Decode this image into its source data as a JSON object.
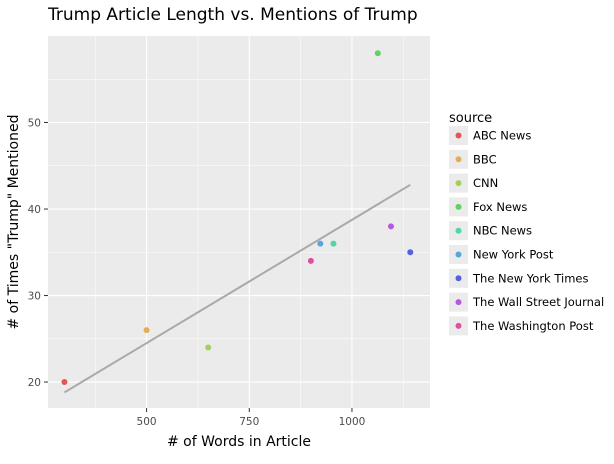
{
  "chart_data": {
    "type": "scatter",
    "title": "Trump Article Length vs. Mentions of Trump",
    "xlabel": "# of Words in Article",
    "ylabel": "# of Times \"Trump\" Mentioned",
    "xlim": [
      260,
      1190
    ],
    "ylim": [
      17,
      60
    ],
    "x_ticks": [
      500,
      750,
      1000
    ],
    "y_ticks": [
      20,
      30,
      40,
      50
    ],
    "grid": true,
    "legend_title": "source",
    "legend_position": "right",
    "series": [
      {
        "name": "ABC News",
        "color": "#e15759",
        "points": [
          {
            "x": 300,
            "y": 20
          }
        ]
      },
      {
        "name": "BBC",
        "color": "#e3ae55",
        "points": [
          {
            "x": 500,
            "y": 26
          }
        ]
      },
      {
        "name": "CNN",
        "color": "#a4d05a",
        "points": [
          {
            "x": 650,
            "y": 24
          }
        ]
      },
      {
        "name": "Fox News",
        "color": "#5ed45e",
        "points": [
          {
            "x": 1063,
            "y": 58
          }
        ]
      },
      {
        "name": "NBC News",
        "color": "#4ed6a6",
        "points": [
          {
            "x": 955,
            "y": 36
          }
        ]
      },
      {
        "name": "New York Post",
        "color": "#54a8dc",
        "points": [
          {
            "x": 923,
            "y": 36
          }
        ]
      },
      {
        "name": "The New York Times",
        "color": "#5561e1",
        "points": [
          {
            "x": 1142,
            "y": 35
          }
        ]
      },
      {
        "name": "The Wall Street Journal",
        "color": "#b659e0",
        "points": [
          {
            "x": 1095,
            "y": 38
          }
        ]
      },
      {
        "name": "The Washington Post",
        "color": "#e04ea1",
        "points": [
          {
            "x": 900,
            "y": 34
          }
        ]
      }
    ],
    "trendline": {
      "color": "#a9a9a9",
      "from": {
        "x": 300,
        "y": 18.8
      },
      "to": {
        "x": 1142,
        "y": 42.8
      }
    }
  }
}
